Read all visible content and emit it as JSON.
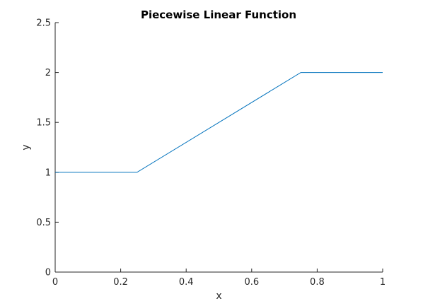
{
  "chart_data": {
    "type": "line",
    "title": "Piecewise Linear Function",
    "xlabel": "x",
    "ylabel": "y",
    "xlim": [
      0,
      1
    ],
    "ylim": [
      0,
      2.5
    ],
    "xticks": [
      0,
      0.2,
      0.4,
      0.6,
      0.8,
      1
    ],
    "xtick_labels": [
      "0",
      "0.2",
      "0.4",
      "0.6",
      "0.8",
      "1"
    ],
    "yticks": [
      0,
      0.5,
      1,
      1.5,
      2,
      2.5
    ],
    "ytick_labels": [
      "0",
      "0.5",
      "1",
      "1.5",
      "2",
      "2.5"
    ],
    "grid": false,
    "legend": "none",
    "series": [
      {
        "color": "#0072BD",
        "x": [
          0,
          0.25,
          0.75,
          1
        ],
        "y": [
          1,
          1,
          2,
          2
        ]
      }
    ]
  }
}
